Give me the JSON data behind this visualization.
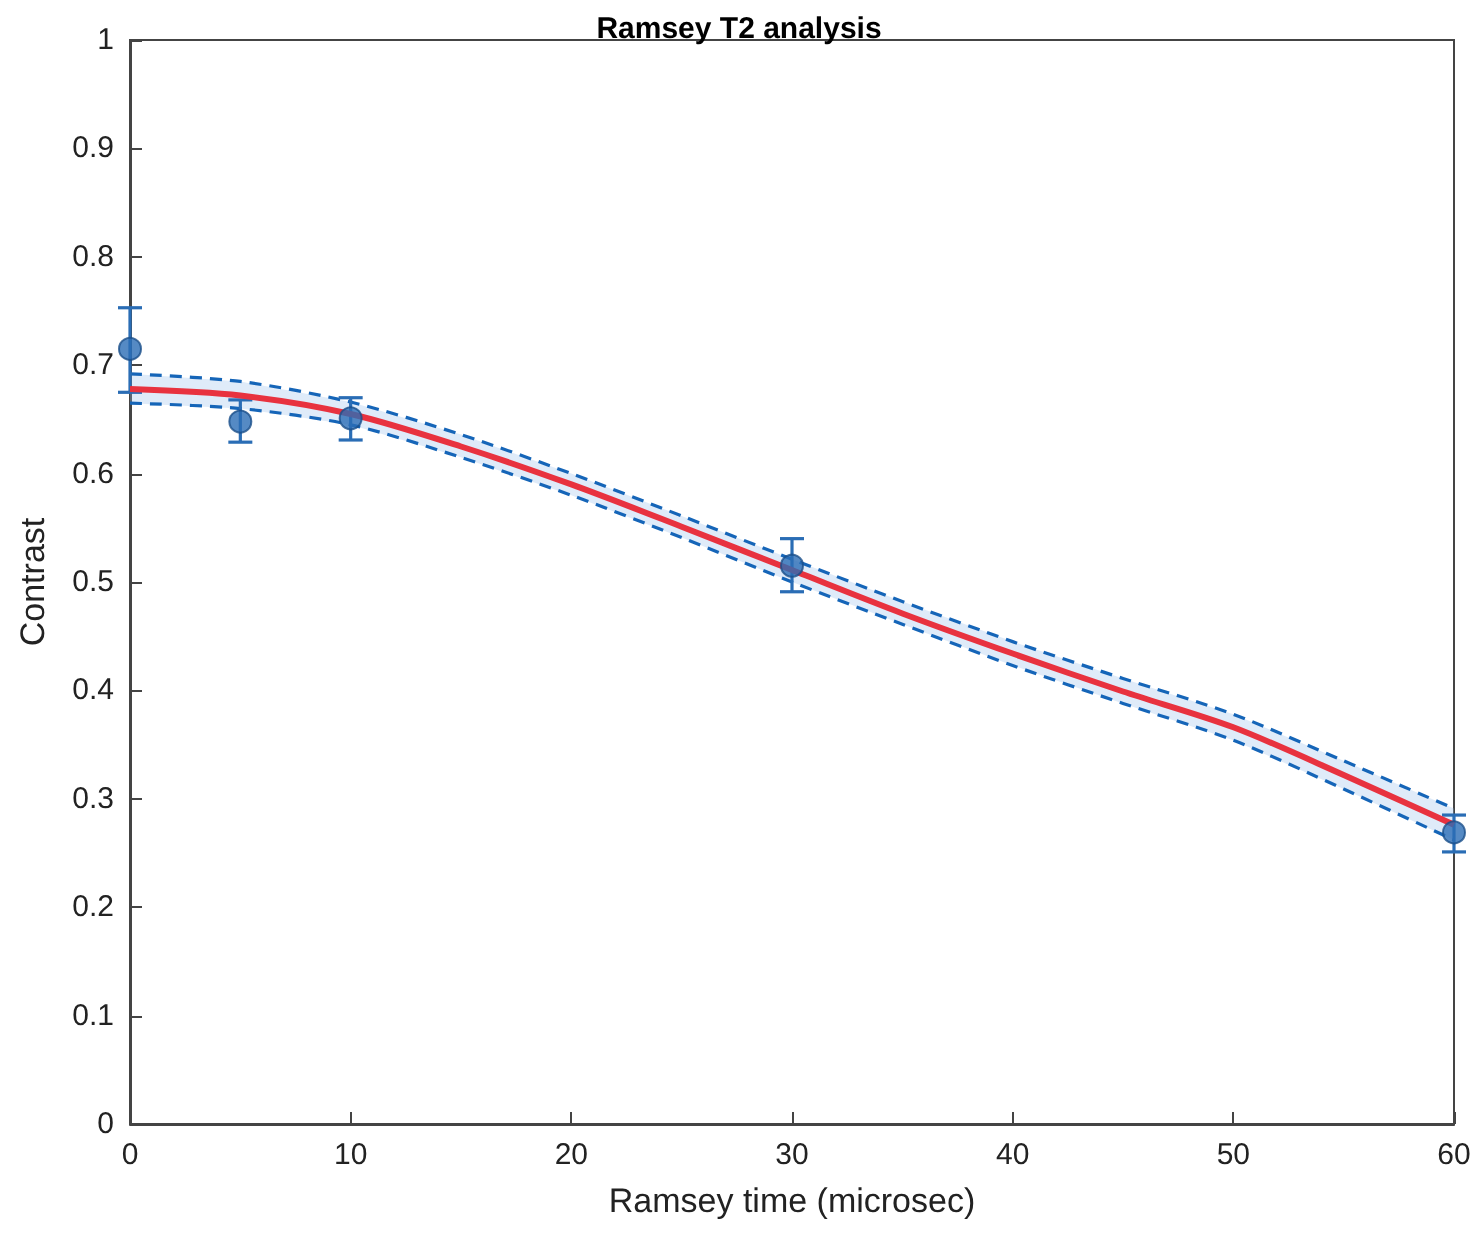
{
  "chart_data": {
    "type": "scatter",
    "title": "Ramsey T2 analysis",
    "xlabel": "Ramsey time (microsec)",
    "ylabel": "Contrast",
    "xlim": [
      0,
      60
    ],
    "xticks": [
      0,
      10,
      20,
      30,
      40,
      50,
      60
    ],
    "ylim": [
      0,
      1
    ],
    "yticks": [
      0,
      0.1,
      0.2,
      0.3,
      0.4,
      0.5,
      0.6,
      0.7,
      0.8,
      0.9,
      1
    ],
    "grid": false,
    "series": [
      {
        "marker": "circle",
        "color": "#2a6db5",
        "x": [
          0,
          5,
          10,
          30,
          60
        ],
        "values": [
          0.715,
          0.648,
          0.651,
          0.515,
          0.269
        ],
        "errors": [
          [
            0.675,
            0.753
          ],
          [
            0.629,
            0.668
          ],
          [
            0.631,
            0.67
          ],
          [
            0.491,
            0.54
          ],
          [
            0.251,
            0.285
          ]
        ]
      },
      {
        "type": "line",
        "color": "#e8323f",
        "x": [
          0,
          5,
          10,
          15,
          20,
          25,
          30,
          35,
          40,
          45,
          50,
          55,
          60
        ],
        "values": [
          0.678,
          0.672,
          0.655,
          0.625,
          0.59,
          0.551,
          0.511,
          0.471,
          0.434,
          0.399,
          0.366,
          0.322,
          0.276
        ],
        "lower": [
          0.665,
          0.66,
          0.645,
          0.615,
          0.58,
          0.541,
          0.5,
          0.461,
          0.423,
          0.388,
          0.354,
          0.309,
          0.262
        ],
        "upper": [
          0.692,
          0.685,
          0.666,
          0.636,
          0.6,
          0.561,
          0.521,
          0.482,
          0.445,
          0.411,
          0.378,
          0.335,
          0.291
        ]
      },
      {
        "type": "line",
        "line_style": "dashed",
        "color": "#1565b8",
        "x": [
          0,
          5,
          10,
          15,
          20,
          25,
          30,
          35,
          40,
          45,
          50,
          55,
          60
        ],
        "values": [
          0.665,
          0.66,
          0.645,
          0.615,
          0.58,
          0.541,
          0.5,
          0.461,
          0.423,
          0.388,
          0.354,
          0.309,
          0.262
        ]
      },
      {
        "type": "line",
        "line_style": "dashed",
        "color": "#1565b8",
        "x": [
          0,
          5,
          10,
          15,
          20,
          25,
          30,
          35,
          40,
          45,
          50,
          55,
          60
        ],
        "values": [
          0.692,
          0.685,
          0.666,
          0.636,
          0.6,
          0.561,
          0.521,
          0.482,
          0.445,
          0.411,
          0.378,
          0.335,
          0.291
        ]
      }
    ]
  }
}
